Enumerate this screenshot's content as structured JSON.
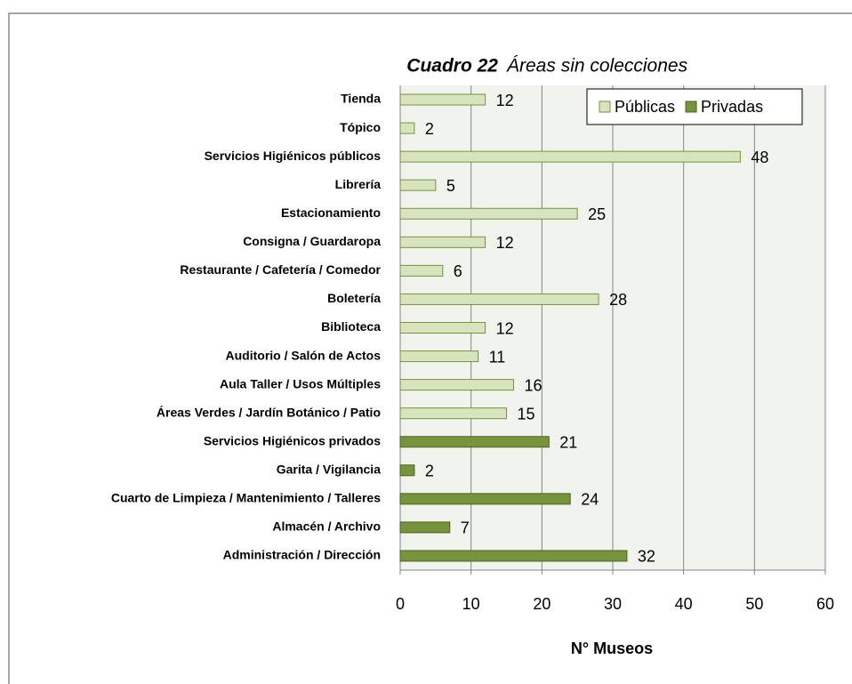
{
  "chart_data": {
    "type": "bar",
    "orientation": "horizontal",
    "title": "Cuadro 22",
    "subtitle": "Áreas sin colecciones",
    "xlabel": "N° Museos",
    "categories": [
      "Tienda",
      "Tópico",
      "Servicios Higiénicos públicos",
      "Librería",
      "Estacionamiento",
      "Consigna / Guardaropa",
      "Restaurante / Cafetería / Comedor",
      "Boletería",
      "Biblioteca",
      "Auditorio / Salón de Actos",
      "Aula Taller / Usos Múltiples",
      "Áreas Verdes / Jardín Botánico / Patio",
      "Servicios Higiénicos privados",
      "Garita / Vigilancia",
      "Cuarto de Limpieza / Mantenimiento / Talleres",
      "Almacén / Archivo",
      "Administración / Dirección"
    ],
    "series": [
      {
        "name": "Públicas",
        "color": "#d7e4bd",
        "values": [
          12,
          2,
          48,
          5,
          25,
          12,
          6,
          28,
          12,
          11,
          16,
          15,
          null,
          null,
          null,
          null,
          null
        ]
      },
      {
        "name": "Privadas",
        "color": "#77933c",
        "values": [
          null,
          null,
          null,
          null,
          null,
          null,
          null,
          null,
          null,
          null,
          null,
          null,
          21,
          2,
          24,
          7,
          32
        ]
      }
    ],
    "xlim": [
      0,
      60
    ],
    "xticks": [
      0,
      10,
      20,
      30,
      40,
      50,
      60
    ],
    "grid": true,
    "legend": "upper right"
  }
}
